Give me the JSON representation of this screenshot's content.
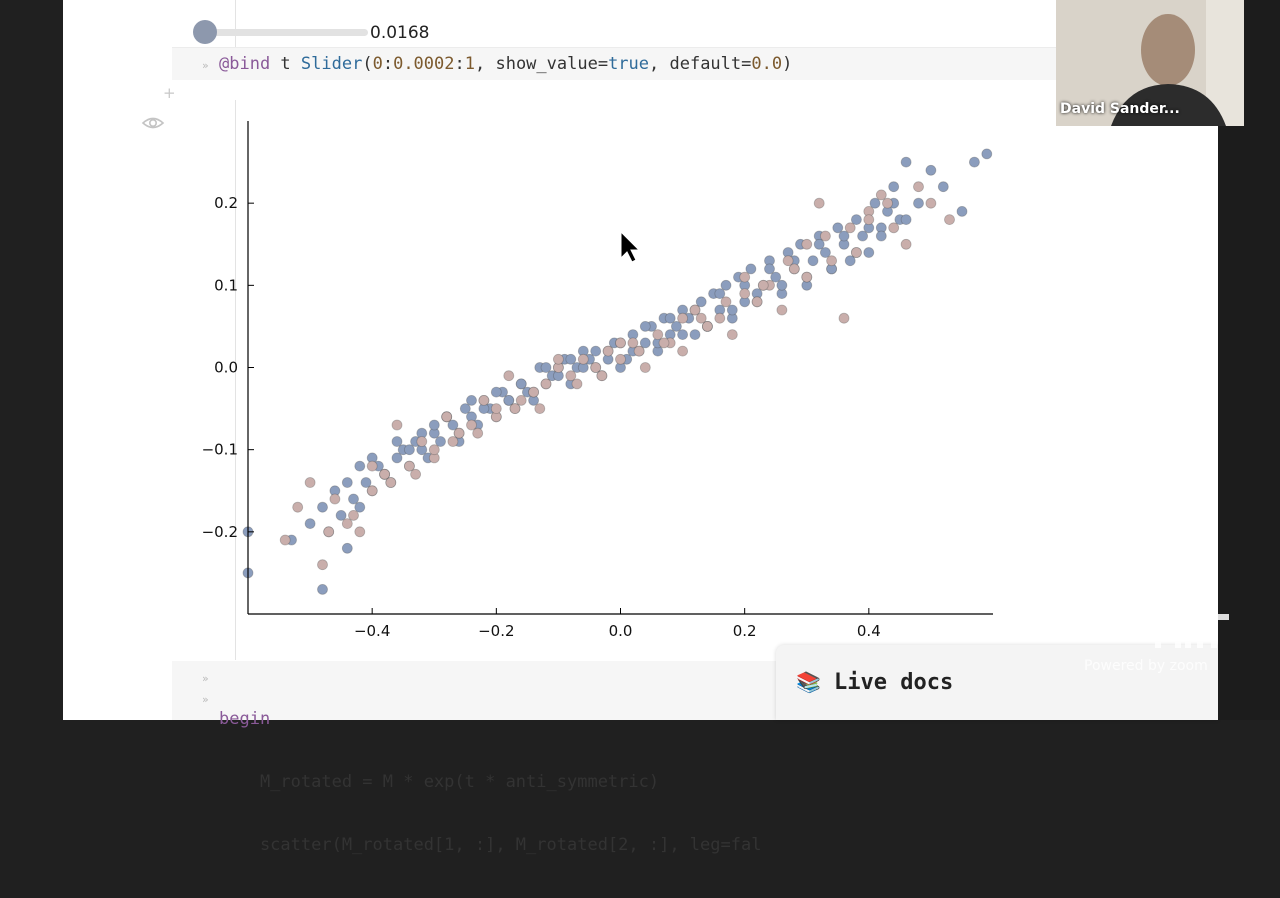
{
  "slider": {
    "value_text": "0.0168",
    "value": 0.0168,
    "min": 0,
    "max": 1
  },
  "input_cell": {
    "tokens": [
      {
        "text": "@bind",
        "cls": "kw"
      },
      {
        "text": " t ",
        "cls": ""
      },
      {
        "text": "Slider",
        "cls": "fn"
      },
      {
        "text": "(",
        "cls": ""
      },
      {
        "text": "0",
        "cls": "num"
      },
      {
        "text": ":",
        "cls": ""
      },
      {
        "text": "0.0002",
        "cls": "num"
      },
      {
        "text": ":",
        "cls": ""
      },
      {
        "text": "1",
        "cls": "num"
      },
      {
        "text": ", show_value=",
        "cls": ""
      },
      {
        "text": "true",
        "cls": "bool"
      },
      {
        "text": ", default=",
        "cls": ""
      },
      {
        "text": "0.0",
        "cls": "num"
      },
      {
        "text": ")",
        "cls": ""
      }
    ]
  },
  "bottom_cell": {
    "lines": [
      "begin",
      "    M_rotated = M * exp(t * anti_symmetric)",
      "    scatter(M_rotated[1, :], M_rotated[2, :], leg=fal"
    ]
  },
  "live_docs": {
    "label": "Live docs",
    "icon": "book-icon"
  },
  "video": {
    "participant_name": "David Sander..."
  },
  "watermark": {
    "zoom": "Powered by zoom"
  },
  "colors": {
    "series_blue": "#8b9dbd",
    "series_pink": "#c9aeab",
    "slider_thumb": "#8d98ad"
  },
  "chart_data": {
    "type": "scatter",
    "title": "",
    "xlabel": "",
    "ylabel": "",
    "xlim": [
      -0.6,
      0.6
    ],
    "ylim": [
      -0.3,
      0.3
    ],
    "xticks": [
      "−0.4",
      "−0.2",
      "0.0",
      "0.2",
      "0.4"
    ],
    "xtick_values": [
      -0.4,
      -0.2,
      0.0,
      0.2,
      0.4
    ],
    "yticks": [
      "−0.2",
      "−0.1",
      "0.0",
      "0.1",
      "0.2"
    ],
    "ytick_values": [
      -0.2,
      -0.1,
      0.0,
      0.1,
      0.2
    ],
    "legend": "none",
    "grid": false,
    "series": [
      {
        "color": "#8b9dbd",
        "x": [
          -0.6,
          -0.6,
          -0.53,
          -0.5,
          -0.48,
          -0.47,
          -0.45,
          -0.44,
          -0.43,
          -0.42,
          -0.41,
          -0.4,
          -0.39,
          -0.38,
          -0.37,
          -0.36,
          -0.35,
          -0.34,
          -0.33,
          -0.32,
          -0.31,
          -0.3,
          -0.29,
          -0.28,
          -0.27,
          -0.26,
          -0.25,
          -0.24,
          -0.23,
          -0.22,
          -0.21,
          -0.2,
          -0.19,
          -0.18,
          -0.17,
          -0.16,
          -0.15,
          -0.14,
          -0.13,
          -0.12,
          -0.11,
          -0.1,
          -0.09,
          -0.08,
          -0.07,
          -0.06,
          -0.05,
          -0.04,
          -0.03,
          -0.02,
          -0.01,
          0.0,
          0.01,
          0.02,
          0.03,
          0.04,
          0.05,
          0.06,
          0.07,
          0.08,
          0.09,
          0.1,
          0.11,
          0.12,
          0.13,
          0.14,
          0.15,
          0.16,
          0.17,
          0.18,
          0.19,
          0.2,
          0.21,
          0.22,
          0.23,
          0.24,
          0.25,
          0.26,
          0.27,
          0.28,
          0.29,
          0.3,
          0.31,
          0.32,
          0.33,
          0.34,
          0.35,
          0.36,
          0.37,
          0.38,
          0.39,
          0.4,
          0.41,
          0.42,
          0.43,
          0.44,
          0.45,
          0.46,
          0.48,
          0.5,
          0.52,
          0.55,
          0.57,
          0.59,
          -0.48,
          -0.46,
          -0.44,
          -0.42,
          -0.4,
          -0.38,
          -0.36,
          -0.34,
          -0.32,
          -0.3,
          -0.28,
          -0.26,
          -0.24,
          -0.22,
          -0.2,
          -0.18,
          -0.16,
          -0.14,
          -0.12,
          -0.1,
          -0.08,
          -0.06,
          -0.04,
          -0.02,
          0.0,
          0.02,
          0.04,
          0.06,
          0.08,
          0.1,
          0.12,
          0.14,
          0.16,
          0.18,
          0.2,
          0.22,
          0.24,
          0.26,
          0.28,
          0.3,
          0.32,
          0.34,
          0.36,
          0.38,
          0.4,
          0.42,
          0.44,
          0.46
        ],
        "y": [
          -0.2,
          -0.25,
          -0.21,
          -0.19,
          -0.27,
          -0.2,
          -0.18,
          -0.22,
          -0.16,
          -0.17,
          -0.14,
          -0.15,
          -0.12,
          -0.13,
          -0.14,
          -0.11,
          -0.1,
          -0.12,
          -0.09,
          -0.1,
          -0.11,
          -0.08,
          -0.09,
          -0.06,
          -0.07,
          -0.09,
          -0.05,
          -0.06,
          -0.07,
          -0.04,
          -0.05,
          -0.06,
          -0.03,
          -0.04,
          -0.05,
          -0.02,
          -0.03,
          -0.04,
          0.0,
          -0.02,
          -0.01,
          0.0,
          0.01,
          -0.02,
          0.0,
          0.02,
          0.01,
          0.0,
          -0.01,
          0.02,
          0.03,
          0.0,
          0.01,
          0.04,
          0.02,
          0.03,
          0.05,
          0.02,
          0.06,
          0.04,
          0.05,
          0.07,
          0.06,
          0.04,
          0.08,
          0.05,
          0.09,
          0.07,
          0.1,
          0.06,
          0.11,
          0.08,
          0.12,
          0.09,
          0.1,
          0.13,
          0.11,
          0.09,
          0.14,
          0.12,
          0.15,
          0.1,
          0.13,
          0.16,
          0.14,
          0.12,
          0.17,
          0.15,
          0.13,
          0.18,
          0.16,
          0.14,
          0.2,
          0.17,
          0.19,
          0.22,
          0.18,
          0.25,
          0.2,
          0.24,
          0.22,
          0.19,
          0.25,
          0.26,
          -0.17,
          -0.15,
          -0.14,
          -0.12,
          -0.11,
          -0.13,
          -0.09,
          -0.1,
          -0.08,
          -0.07,
          -0.06,
          -0.08,
          -0.04,
          -0.05,
          -0.03,
          -0.04,
          -0.02,
          -0.03,
          0.0,
          -0.01,
          0.01,
          0.0,
          0.02,
          0.01,
          0.03,
          0.02,
          0.05,
          0.03,
          0.06,
          0.04,
          0.07,
          0.05,
          0.09,
          0.07,
          0.1,
          0.08,
          0.12,
          0.1,
          0.13,
          0.11,
          0.15,
          0.12,
          0.16,
          0.14,
          0.17,
          0.16,
          0.2,
          0.18
        ]
      },
      {
        "color": "#c9aeab",
        "x": [
          -0.54,
          -0.52,
          -0.5,
          -0.48,
          -0.46,
          -0.44,
          -0.42,
          -0.4,
          -0.38,
          -0.36,
          -0.34,
          -0.32,
          -0.3,
          -0.28,
          -0.26,
          -0.24,
          -0.22,
          -0.2,
          -0.18,
          -0.16,
          -0.14,
          -0.12,
          -0.1,
          -0.08,
          -0.06,
          -0.04,
          -0.02,
          0.0,
          0.02,
          0.04,
          0.06,
          0.08,
          0.1,
          0.12,
          0.14,
          0.16,
          0.18,
          0.2,
          0.22,
          0.24,
          0.26,
          0.28,
          0.3,
          0.32,
          0.34,
          0.36,
          0.38,
          0.4,
          0.42,
          0.44,
          0.46,
          0.48,
          0.5,
          0.53,
          -0.47,
          -0.43,
          -0.37,
          -0.33,
          -0.27,
          -0.23,
          -0.17,
          -0.13,
          -0.07,
          -0.03,
          0.03,
          0.07,
          0.13,
          0.17,
          0.23,
          0.27,
          0.33,
          0.37,
          0.43,
          -0.4,
          -0.3,
          -0.2,
          -0.1,
          0.0,
          0.1,
          0.2,
          0.3,
          0.4
        ],
        "y": [
          -0.21,
          -0.17,
          -0.14,
          -0.24,
          -0.16,
          -0.19,
          -0.2,
          -0.15,
          -0.13,
          -0.07,
          -0.12,
          -0.09,
          -0.11,
          -0.06,
          -0.08,
          -0.07,
          -0.04,
          -0.06,
          -0.01,
          -0.04,
          -0.03,
          -0.02,
          0.0,
          -0.01,
          0.01,
          0.0,
          0.02,
          0.01,
          0.03,
          0.0,
          0.04,
          0.03,
          0.02,
          0.07,
          0.05,
          0.06,
          0.04,
          0.09,
          0.08,
          0.1,
          0.07,
          0.12,
          0.11,
          0.2,
          0.13,
          0.06,
          0.14,
          0.19,
          0.21,
          0.17,
          0.15,
          0.22,
          0.2,
          0.18,
          -0.2,
          -0.18,
          -0.14,
          -0.13,
          -0.09,
          -0.08,
          -0.05,
          -0.05,
          -0.02,
          -0.01,
          0.02,
          0.03,
          0.06,
          0.08,
          0.1,
          0.13,
          0.16,
          0.17,
          0.2,
          -0.12,
          -0.1,
          -0.05,
          0.01,
          0.03,
          0.06,
          0.11,
          0.15,
          0.18
        ]
      }
    ]
  }
}
